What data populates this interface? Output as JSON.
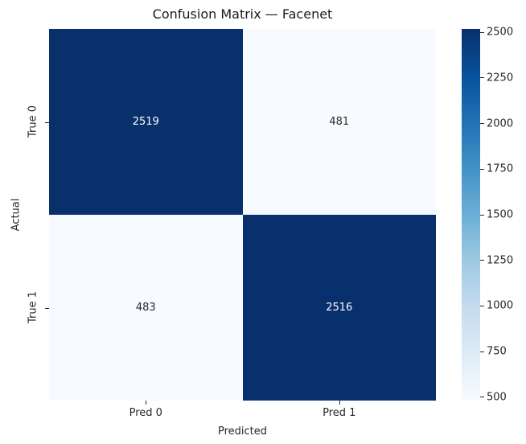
{
  "title": "Confusion Matrix — Facenet",
  "chart_data": {
    "type": "heatmap",
    "title": "Confusion Matrix — Facenet",
    "xlabel": "Predicted",
    "ylabel": "Actual",
    "x_tick_labels": [
      "Pred 0",
      "Pred 1"
    ],
    "y_tick_labels": [
      "True 0",
      "True 1"
    ],
    "matrix": [
      [
        2519,
        481
      ],
      [
        483,
        2516
      ]
    ],
    "vmin": 481,
    "vmax": 2519,
    "colormap": "Blues",
    "colorbar_ticks": [
      2500,
      2250,
      2000,
      1750,
      1500,
      1250,
      1000,
      750,
      500
    ],
    "colorbar_position": "right",
    "grid": false,
    "annotations": true
  },
  "colors": {
    "annot_on_dark": "#ffffff",
    "annot_on_light": "#262626",
    "tick_text": "#262626",
    "title_text": "#1a1a1a",
    "blues_stops": [
      "#f7fbff",
      "#deebf7",
      "#c6dbef",
      "#9ecae1",
      "#6baed6",
      "#4292c6",
      "#2171b5",
      "#08519c",
      "#08306b"
    ]
  }
}
